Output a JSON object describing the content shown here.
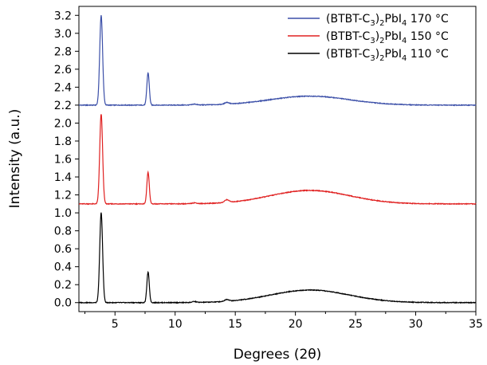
{
  "chart_data": {
    "type": "line",
    "xlabel": "Degrees (2θ)",
    "ylabel": "Intensity (a.u.)",
    "xlim": [
      2,
      35
    ],
    "ylim": [
      -0.1,
      3.3
    ],
    "x_ticks": [
      5,
      10,
      15,
      20,
      25,
      30,
      35
    ],
    "y_ticks": [
      0.0,
      0.2,
      0.4,
      0.6,
      0.8,
      1.0,
      1.2,
      1.4,
      1.6,
      1.8,
      2.0,
      2.2,
      2.4,
      2.6,
      2.8,
      3.0,
      3.2
    ],
    "grid": false,
    "legend_position": "top-right",
    "series": [
      {
        "name": "(BTBT-C3)2PbI4 170 °C",
        "legend": {
          "prefix": "(BTBT-C",
          "sub1": "3",
          "mid": ")",
          "sub2": "2",
          "mid2": "PbI",
          "sub3": "4",
          "suffix": " 170 °C"
        },
        "color": "#3b4fa8",
        "baseline": 2.2,
        "peaks": [
          [
            3.85,
            1.0
          ],
          [
            7.75,
            0.36
          ],
          [
            11.6,
            0.01
          ],
          [
            14.3,
            0.02
          ]
        ],
        "hump": {
          "center": 21.2,
          "height": 0.1
        }
      },
      {
        "name": "(BTBT-C3)2PbI4 150 °C",
        "legend": {
          "prefix": "(BTBT-C",
          "sub1": "3",
          "mid": ")",
          "sub2": "2",
          "mid2": "PbI",
          "sub3": "4",
          "suffix": " 150 °C"
        },
        "color": "#e02020",
        "baseline": 1.1,
        "peaks": [
          [
            3.85,
            1.0
          ],
          [
            7.75,
            0.35
          ],
          [
            11.6,
            0.01
          ],
          [
            14.3,
            0.03
          ]
        ],
        "hump": {
          "center": 21.2,
          "height": 0.15
        }
      },
      {
        "name": "(BTBT-C3)2PbI4 110 °C",
        "legend": {
          "prefix": "(BTBT-C",
          "sub1": "3",
          "mid": ")",
          "sub2": "2",
          "mid2": "PbI",
          "sub3": "4",
          "suffix": " 110 °C"
        },
        "color": "#000000",
        "baseline": 0.0,
        "peaks": [
          [
            3.85,
            1.0
          ],
          [
            7.75,
            0.34
          ],
          [
            11.6,
            0.01
          ],
          [
            14.3,
            0.02
          ]
        ],
        "hump": {
          "center": 21.2,
          "height": 0.14
        }
      }
    ]
  }
}
